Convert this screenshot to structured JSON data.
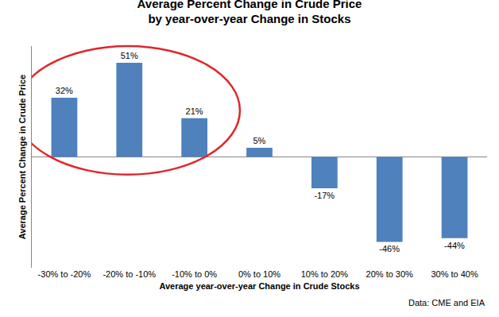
{
  "chart_data": {
    "type": "bar",
    "title": "Average Percent Change in Crude Price\nby year-over-year Change in Stocks",
    "x_label": "Average year-over-year Change in Crude Stocks",
    "y_label": "Average Percent Change in Crude Price",
    "annotations": [
      "Data: CME and EIA"
    ],
    "categories": [
      "-30% to -20%",
      "-20% to -10%",
      "-10% to 0%",
      "0% to 10%",
      "10% to 20%",
      "20% to 30%",
      "30% to 40%"
    ],
    "values": [
      32,
      51,
      21,
      5,
      -17,
      -46,
      -44
    ],
    "value_labels": [
      "32%",
      "51%",
      "21%",
      "5%",
      "-17%",
      "-46%",
      "-44%"
    ],
    "color": "#4f81bd",
    "ylim": [
      -60,
      60
    ],
    "grid": false,
    "data_labels": true,
    "tick_labels": "x"
  }
}
